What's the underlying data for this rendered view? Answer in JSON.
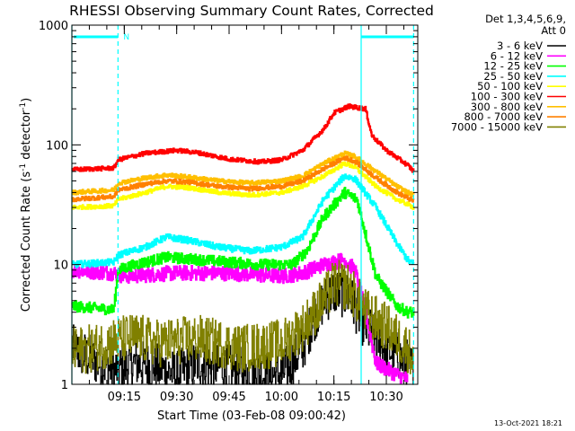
{
  "chart_data": {
    "type": "line",
    "title": "RHESSI Observing Summary Count Rates, Corrected",
    "xlabel": "Start Time (03-Feb-08 09:00:42)",
    "ylabel_main": "Corrected Count Rate (s",
    "ylabel_sup1": "-1",
    "ylabel_mid": " detector",
    "ylabel_sup2": "-1",
    "ylabel_end": ")",
    "y_scale": "log",
    "ylim": [
      1,
      1000
    ],
    "xlim": [
      9.0,
      10.65
    ],
    "x_ticks": [
      {
        "t": 9.25,
        "label": "09:15"
      },
      {
        "t": 9.5,
        "label": "09:30"
      },
      {
        "t": 9.75,
        "label": "09:45"
      },
      {
        "t": 10.0,
        "label": "10:00"
      },
      {
        "t": 10.25,
        "label": "10:15"
      },
      {
        "t": 10.5,
        "label": "10:30"
      }
    ],
    "y_ticks": [
      {
        "v": 1,
        "label": "1"
      },
      {
        "v": 10,
        "label": "10"
      },
      {
        "v": 100,
        "label": "100"
      },
      {
        "v": 1000,
        "label": "1000"
      }
    ],
    "legend_header": [
      "Det 1,3,4,5,6,9,",
      "Att 0"
    ],
    "legend_position": "right",
    "night_marker_label": "N",
    "footer_date": "13-Oct-2021 18:21",
    "series": [
      {
        "name": "3 - 6 keV",
        "color": "#000000",
        "noise": 0.45,
        "points": [
          [
            9.0,
            2
          ],
          [
            9.1,
            1.6
          ],
          [
            9.2,
            1.3
          ],
          [
            9.3,
            1.5
          ],
          [
            9.4,
            1.4
          ],
          [
            9.5,
            1.2
          ],
          [
            9.6,
            1.5
          ],
          [
            9.7,
            1.4
          ],
          [
            9.8,
            1.3
          ],
          [
            9.9,
            1.2
          ],
          [
            10.0,
            1.2
          ],
          [
            10.1,
            2
          ],
          [
            10.15,
            3.5
          ],
          [
            10.2,
            5
          ],
          [
            10.25,
            6
          ],
          [
            10.32,
            5.5
          ],
          [
            10.4,
            3
          ],
          [
            10.5,
            2
          ],
          [
            10.6,
            1.5
          ],
          [
            10.63,
            1.3
          ]
        ]
      },
      {
        "name": "6 - 12 keV",
        "color": "#ff00ff",
        "noise": 0.14,
        "points": [
          [
            9.0,
            9
          ],
          [
            9.2,
            8.5
          ],
          [
            9.25,
            8
          ],
          [
            9.5,
            8.5
          ],
          [
            9.75,
            8.5
          ],
          [
            10.0,
            8
          ],
          [
            10.1,
            8.5
          ],
          [
            10.2,
            10
          ],
          [
            10.3,
            11
          ],
          [
            10.35,
            9
          ],
          [
            10.4,
            4
          ],
          [
            10.45,
            1.5
          ],
          [
            10.55,
            1.2
          ],
          [
            10.6,
            1.1
          ]
        ]
      },
      {
        "name": "12 - 25 keV",
        "color": "#00ff00",
        "noise": 0.1,
        "points": [
          [
            9.0,
            4.5
          ],
          [
            9.2,
            4.2
          ],
          [
            9.22,
            9
          ],
          [
            9.3,
            10
          ],
          [
            9.45,
            11.5
          ],
          [
            9.6,
            11
          ],
          [
            9.75,
            10.5
          ],
          [
            9.9,
            10
          ],
          [
            10.05,
            10
          ],
          [
            10.12,
            13
          ],
          [
            10.2,
            25
          ],
          [
            10.3,
            40
          ],
          [
            10.36,
            35
          ],
          [
            10.45,
            8
          ],
          [
            10.55,
            4.5
          ],
          [
            10.6,
            4
          ],
          [
            10.63,
            4
          ]
        ]
      },
      {
        "name": "25 - 50 keV",
        "color": "#00ffff",
        "noise": 0.06,
        "points": [
          [
            9.0,
            10
          ],
          [
            9.2,
            10.5
          ],
          [
            9.22,
            12
          ],
          [
            9.35,
            14
          ],
          [
            9.45,
            17
          ],
          [
            9.55,
            16
          ],
          [
            9.7,
            14
          ],
          [
            9.85,
            13
          ],
          [
            10.0,
            14
          ],
          [
            10.1,
            17
          ],
          [
            10.2,
            35
          ],
          [
            10.3,
            55
          ],
          [
            10.35,
            52
          ],
          [
            10.45,
            30
          ],
          [
            10.55,
            15
          ],
          [
            10.6,
            11
          ],
          [
            10.63,
            10
          ]
        ]
      },
      {
        "name": "50 - 100 keV",
        "color": "#ffff00",
        "noise": 0.04,
        "points": [
          [
            9.0,
            30
          ],
          [
            9.2,
            31
          ],
          [
            9.22,
            35
          ],
          [
            9.35,
            40
          ],
          [
            9.45,
            45
          ],
          [
            9.55,
            44
          ],
          [
            9.7,
            40
          ],
          [
            9.85,
            38
          ],
          [
            10.0,
            40
          ],
          [
            10.1,
            45
          ],
          [
            10.2,
            55
          ],
          [
            10.3,
            70
          ],
          [
            10.35,
            65
          ],
          [
            10.45,
            45
          ],
          [
            10.55,
            35
          ],
          [
            10.6,
            32
          ],
          [
            10.63,
            30
          ]
        ]
      },
      {
        "name": "100 - 300 keV",
        "color": "#ff0000",
        "noise": 0.04,
        "points": [
          [
            9.0,
            62
          ],
          [
            9.2,
            64
          ],
          [
            9.22,
            75
          ],
          [
            9.35,
            85
          ],
          [
            9.5,
            90
          ],
          [
            9.6,
            86
          ],
          [
            9.75,
            76
          ],
          [
            9.9,
            72
          ],
          [
            10.0,
            75
          ],
          [
            10.1,
            90
          ],
          [
            10.2,
            135
          ],
          [
            10.25,
            185
          ],
          [
            10.32,
            210
          ],
          [
            10.4,
            200
          ],
          [
            10.43,
            120
          ],
          [
            10.5,
            90
          ],
          [
            10.6,
            68
          ],
          [
            10.63,
            60
          ]
        ]
      },
      {
        "name": "300 - 800 keV",
        "color": "#ffbf00",
        "noise": 0.04,
        "points": [
          [
            9.0,
            40
          ],
          [
            9.2,
            42
          ],
          [
            9.22,
            48
          ],
          [
            9.35,
            53
          ],
          [
            9.45,
            56
          ],
          [
            9.55,
            54
          ],
          [
            9.7,
            50
          ],
          [
            9.85,
            48
          ],
          [
            10.0,
            50
          ],
          [
            10.1,
            55
          ],
          [
            10.2,
            70
          ],
          [
            10.3,
            85
          ],
          [
            10.35,
            80
          ],
          [
            10.45,
            60
          ],
          [
            10.55,
            45
          ],
          [
            10.6,
            40
          ],
          [
            10.63,
            38
          ]
        ]
      },
      {
        "name": "800 - 7000 keV",
        "color": "#ff8000",
        "noise": 0.04,
        "points": [
          [
            9.0,
            35
          ],
          [
            9.2,
            37
          ],
          [
            9.22,
            42
          ],
          [
            9.35,
            47
          ],
          [
            9.45,
            50
          ],
          [
            9.55,
            49
          ],
          [
            9.7,
            45
          ],
          [
            9.85,
            43
          ],
          [
            10.0,
            45
          ],
          [
            10.1,
            50
          ],
          [
            10.2,
            63
          ],
          [
            10.3,
            78
          ],
          [
            10.35,
            73
          ],
          [
            10.45,
            53
          ],
          [
            10.55,
            40
          ],
          [
            10.6,
            36
          ],
          [
            10.63,
            34
          ]
        ]
      },
      {
        "name": "7000 - 15000 keV",
        "color": "#808000",
        "noise": 0.45,
        "points": [
          [
            9.0,
            1.9
          ],
          [
            9.1,
            2
          ],
          [
            9.2,
            2.3
          ],
          [
            9.3,
            2.5
          ],
          [
            9.4,
            2.2
          ],
          [
            9.5,
            2.3
          ],
          [
            9.6,
            2.4
          ],
          [
            9.7,
            2.2
          ],
          [
            9.8,
            2
          ],
          [
            9.9,
            2.1
          ],
          [
            10.0,
            2.2
          ],
          [
            10.1,
            3
          ],
          [
            10.2,
            5
          ],
          [
            10.25,
            7
          ],
          [
            10.32,
            6.5
          ],
          [
            10.4,
            4
          ],
          [
            10.5,
            3
          ],
          [
            10.6,
            2
          ],
          [
            10.63,
            1.6
          ]
        ]
      }
    ],
    "verticals": [
      {
        "t": 9.0,
        "color": "#00ffff",
        "dashed": false
      },
      {
        "t": 9.22,
        "color": "#00ffff",
        "dashed": true
      },
      {
        "t": 10.38,
        "color": "#00ffff",
        "dashed": false
      },
      {
        "t": 10.63,
        "color": "#00ffff",
        "dashed": true
      }
    ]
  }
}
